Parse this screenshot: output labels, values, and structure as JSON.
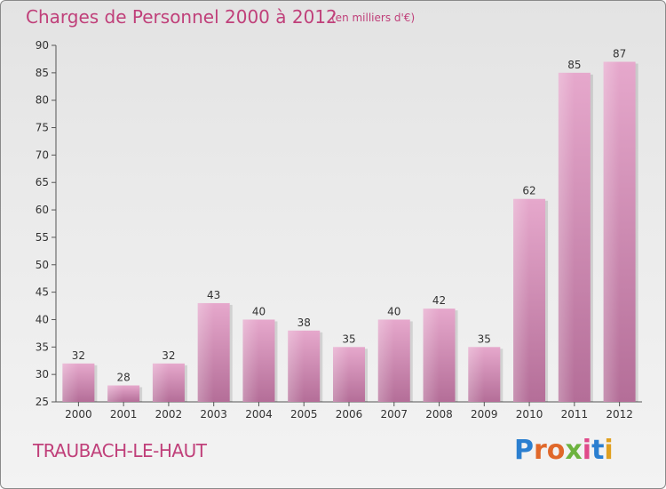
{
  "header": {
    "title": "Charges de Personnel 2000 à 2012",
    "subtitle": "(en milliers d'€)"
  },
  "footer": {
    "city": "TRAUBACH-LE-HAUT",
    "logo": "Proxiti"
  },
  "colors": {
    "accent": "#c0407a",
    "bar_top": "#e6a8cc",
    "bar_bottom": "#b46e98"
  },
  "chart_data": {
    "type": "bar",
    "title": "Charges de Personnel 2000 à 2012",
    "subtitle": "(en milliers d'€)",
    "categories": [
      "2000",
      "2001",
      "2002",
      "2003",
      "2004",
      "2005",
      "2006",
      "2007",
      "2008",
      "2009",
      "2010",
      "2011",
      "2012"
    ],
    "values": [
      32,
      28,
      32,
      43,
      40,
      38,
      35,
      40,
      42,
      35,
      62,
      85,
      87
    ],
    "ylim": [
      25,
      90
    ],
    "yticks": [
      25,
      30,
      35,
      40,
      45,
      50,
      55,
      60,
      65,
      70,
      75,
      80,
      85,
      90
    ],
    "grid": false,
    "legend": "none"
  }
}
